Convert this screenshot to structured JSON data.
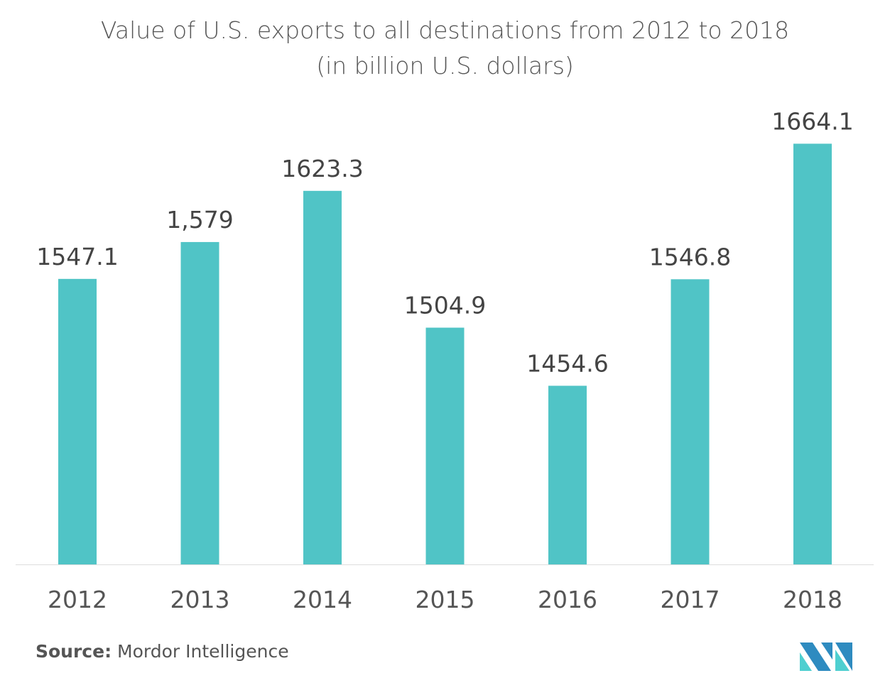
{
  "chart_data": {
    "type": "bar",
    "title": "Value of U.S. exports to all destinations from 2012 to 2018",
    "subtitle": "(in billion U.S. dollars)",
    "categories": [
      "2012",
      "2013",
      "2014",
      "2015",
      "2016",
      "2017",
      "2018"
    ],
    "values": [
      1547.1,
      1579,
      1623.3,
      1504.9,
      1454.6,
      1546.8,
      1664.1
    ],
    "data_labels": [
      "1547.1",
      "1,579",
      "1623.3",
      "1504.9",
      "1454.6",
      "1546.8",
      "1664.1"
    ],
    "xlabel": "",
    "ylabel": "",
    "ylim": [
      1300,
      1700
    ],
    "grid": false,
    "y_axis_visible": false,
    "bar_color": "#50C4C6",
    "label_color": "#444444"
  },
  "source": {
    "label": "Source:",
    "text": "Mordor Intelligence"
  },
  "logo": {
    "colors": [
      "#2E8BC0",
      "#4ECFD0"
    ]
  }
}
